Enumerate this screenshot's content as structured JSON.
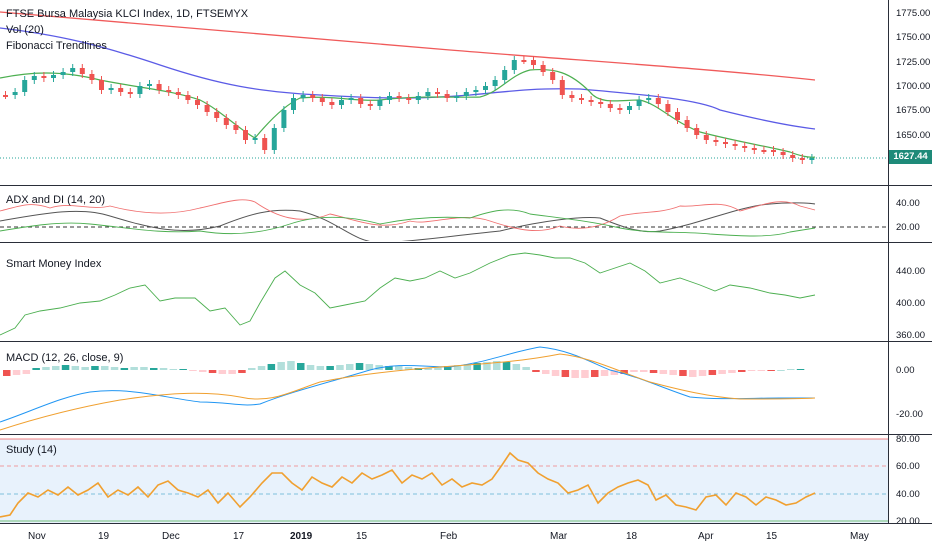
{
  "header": {
    "symbol": "FTSE Bursa Malaysia KLCI Index, 1D, FTSEMYX",
    "volume_label": "Vol (20)",
    "fib_label": "Fibonacci Trendlines"
  },
  "indicators": {
    "adx_label": "ADX and DI (14, 20)",
    "smi_label": "Smart Money Index",
    "macd_label": "MACD (12, 26, close, 9)",
    "study_label": "Study (14)"
  },
  "price_axis": [
    "1775.00",
    "1750.00",
    "1725.00",
    "1700.00",
    "1675.00",
    "1650.00"
  ],
  "last_price": "1627.44",
  "adx_axis": [
    "40.00",
    "20.00"
  ],
  "smi_axis": [
    "440.00",
    "400.00",
    "360.00"
  ],
  "macd_axis": [
    "0.00",
    "-20.00"
  ],
  "study_axis": [
    "80.00",
    "60.00",
    "40.00",
    "20.00"
  ],
  "time_axis": [
    "Nov",
    "19",
    "Dec",
    "17",
    "2019",
    "15",
    "Feb",
    "Mar",
    "18",
    "Apr",
    "15",
    "May"
  ],
  "colors": {
    "up": "#26a69a",
    "down": "#ef5350",
    "ma_red": "#f05a5a",
    "ma_blue": "#5b5be6",
    "ma_green": "#4caf50",
    "study_line": "#f0a030",
    "study_band": "#e3f2fd"
  }
}
